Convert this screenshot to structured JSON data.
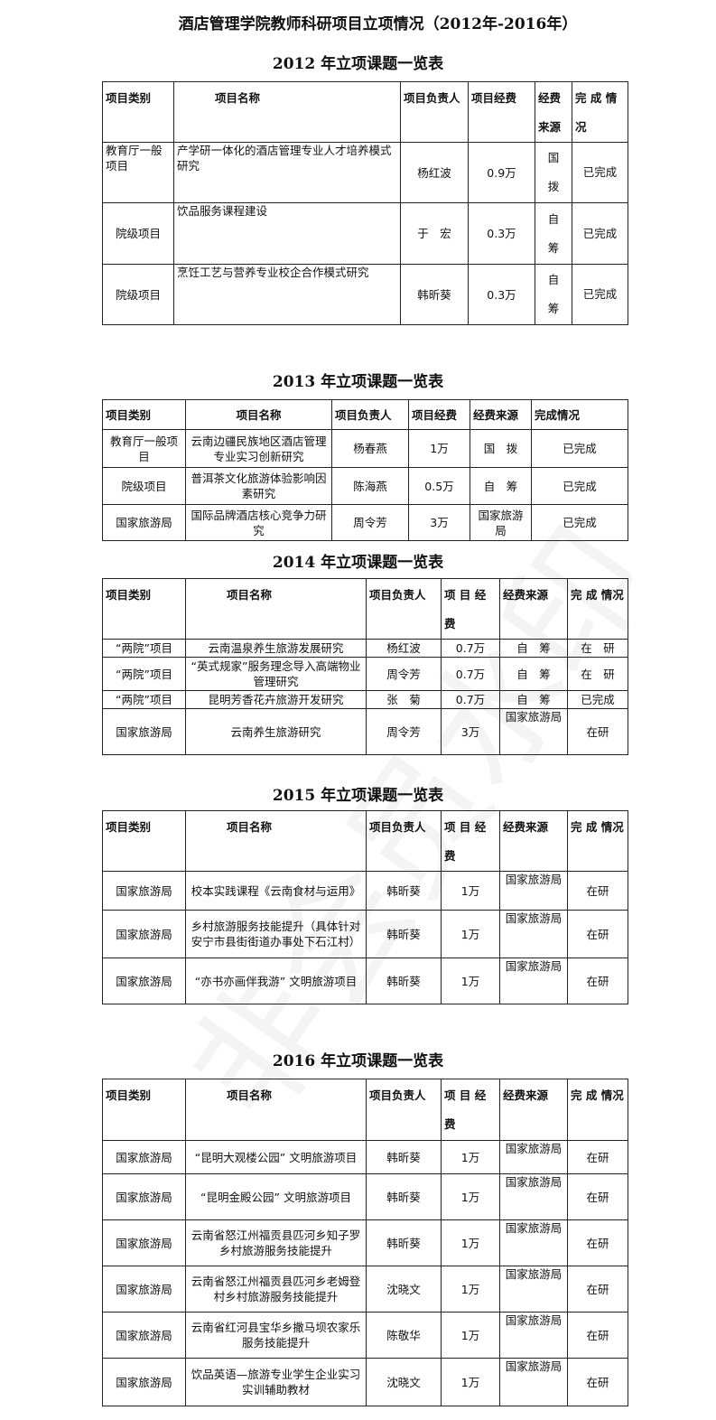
{
  "document": {
    "title": "酒店管理学院教师科研项目立项情况（2012年-2016年）",
    "watermark": "非会员水印",
    "tables": [
      {
        "heading": "2012 年立项课题一览表",
        "headers": [
          "项目类别",
          "项目名称",
          "项目负责人",
          "项目经费",
          "经费来源",
          "完 成 情况"
        ],
        "rows": [
          [
            "教育厅一般项目",
            "产学研一体化的酒店管理专业人才培养模式研究",
            "杨红波",
            "0.9万",
            "国拨",
            "已完成"
          ],
          [
            "院级项目",
            "饮品服务课程建设",
            "于　宏",
            "0.3万",
            "自筹",
            "已完成"
          ],
          [
            "院级项目",
            "烹饪工艺与营养专业校企合作模式研究",
            "韩昕葵",
            "0.3万",
            "自筹",
            "已完成"
          ]
        ]
      },
      {
        "heading": "2013 年立项课题一览表",
        "headers": [
          "项目类别",
          "项目名称",
          "项目负责人",
          "项目经费",
          "经费来源",
          "完成情况"
        ],
        "rows": [
          [
            "教育厅一般项目",
            "云南边疆民族地区酒店管理专业实习创新研究",
            "杨春燕",
            "1万",
            "国　拨",
            "已完成"
          ],
          [
            "院级项目",
            "普洱茶文化旅游体验影响因素研究",
            "陈海燕",
            "0.5万",
            "自　筹",
            "已完成"
          ],
          [
            "国家旅游局",
            "国际品牌酒店核心竞争力研究",
            "周令芳",
            "3万",
            "国家旅游局",
            "已完成"
          ]
        ]
      },
      {
        "heading": "2014 年立项课题一览表",
        "headers": [
          "项目类别",
          "项目名称",
          "项目负责人",
          "项 目 经费",
          "经费来源",
          "完 成 情况"
        ],
        "rows": [
          [
            "“两院”项目",
            "云南温泉养生旅游发展研究",
            "杨红波",
            "0.7万",
            "自　筹",
            "在　研"
          ],
          [
            "“两院”项目",
            "“英式规家”服务理念导入高端物业管理研究",
            "周令芳",
            "0.7万",
            "自　筹",
            "在　研"
          ],
          [
            "“两院”项目",
            "昆明芳香花卉旅游开发研究",
            "张　菊",
            "0.7万",
            "自　筹",
            "已完成"
          ],
          [
            "国家旅游局",
            "云南养生旅游研究",
            "周令芳",
            "3万",
            "国家旅游局",
            "在研"
          ]
        ]
      },
      {
        "heading": "2015 年立项课题一览表",
        "headers": [
          "项目类别",
          "项目名称",
          "项目负责人",
          "项 目 经费",
          "经费来源",
          "完 成 情况"
        ],
        "rows": [
          [
            "国家旅游局",
            "校本实践课程《云南食材与运用》",
            "韩昕葵",
            "1万",
            "国家旅游局",
            "在研"
          ],
          [
            "国家旅游局",
            "乡村旅游服务技能提升（具体针对安宁市县街街道办事处下石江村）",
            "韩昕葵",
            "1万",
            "国家旅游局",
            "在研"
          ],
          [
            "国家旅游局",
            "“亦书亦画伴我游” 文明旅游项目",
            "韩昕葵",
            "1万",
            "国家旅游局",
            "在研"
          ]
        ]
      },
      {
        "heading": "2016 年立项课题一览表",
        "headers": [
          "项目类别",
          "项目名称",
          "项目负责人",
          "项 目 经费",
          "经费来源",
          "完 成 情况"
        ],
        "rows": [
          [
            "国家旅游局",
            "“昆明大观楼公园” 文明旅游项目",
            "韩昕葵",
            "1万",
            "国家旅游局",
            "在研"
          ],
          [
            "国家旅游局",
            "“昆明金殿公园” 文明旅游项目",
            "韩昕葵",
            "1万",
            "国家旅游局",
            "在研"
          ],
          [
            "国家旅游局",
            "云南省怒江州福贡县匹河乡知子罗乡村旅游服务技能提升",
            "韩昕葵",
            "1万",
            "国家旅游局",
            "在研"
          ],
          [
            "国家旅游局",
            "云南省怒江州福贡县匹河乡老姆登村乡村旅游服务技能提升",
            "沈晓文",
            "1万",
            "国家旅游局",
            "在研"
          ],
          [
            "国家旅游局",
            "云南省红河县宝华乡撒马坝农家乐服务技能提升",
            "陈敬华",
            "1万",
            "国家旅游局",
            "在研"
          ],
          [
            "国家旅游局",
            "饮品英语—旅游专业学生企业实习实训辅助教材",
            "沈晓文",
            "1万",
            "国家旅游局",
            "在研"
          ]
        ]
      }
    ]
  }
}
